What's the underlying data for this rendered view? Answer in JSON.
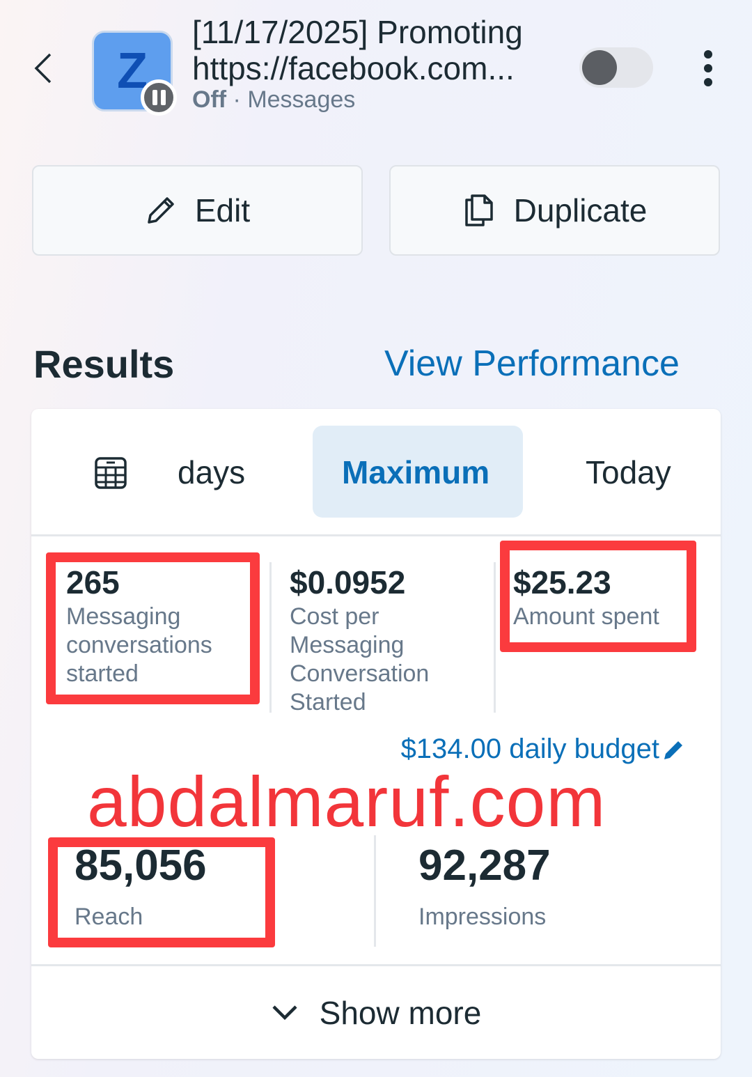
{
  "header": {
    "title_line1": "[11/17/2025] Promoting",
    "title_line2": "https://facebook.com...",
    "avatar_letter": "Z",
    "status": "Off",
    "separator": "·",
    "objective": "Messages",
    "toggle_on": false
  },
  "actions": {
    "edit": "Edit",
    "duplicate": "Duplicate"
  },
  "results": {
    "heading": "Results",
    "view_performance": "View Performance"
  },
  "tabs": [
    {
      "label": "days",
      "icon": "calendar-icon"
    },
    {
      "label": "Maximum",
      "selected": true
    },
    {
      "label": "Today"
    }
  ],
  "metrics": [
    {
      "value": "265",
      "label": "Messaging conversations started"
    },
    {
      "value": "$0.0952",
      "label": "Cost per Messaging Conversation Started"
    },
    {
      "value": "$25.23",
      "label": "Amount spent"
    }
  ],
  "budget": "$134.00 daily budget",
  "watermark": "abdalmaruf.com",
  "reach": {
    "value": "85,056",
    "label": "Reach"
  },
  "impressions": {
    "value": "92,287",
    "label": "Impressions"
  },
  "show_more": "Show more",
  "colors": {
    "accent": "#0a6fb8",
    "highlight": "#fb3b3e",
    "selected_tab": "#e1edf7"
  }
}
